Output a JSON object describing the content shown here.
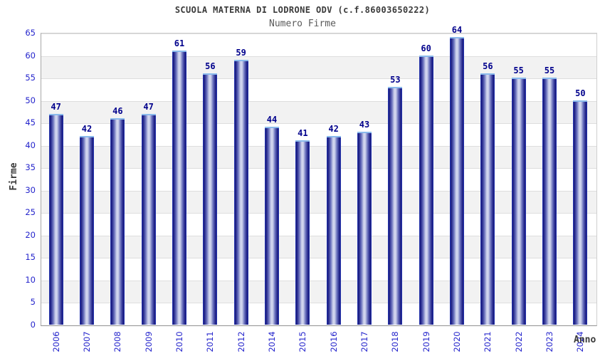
{
  "chart_data": {
    "type": "bar",
    "title": "SCUOLA MATERNA DI LODRONE ODV (c.f.86003650222)",
    "subtitle": "Numero Firme",
    "xlabel": "Anno",
    "ylabel": "Firme",
    "categories": [
      "2006",
      "2007",
      "2008",
      "2009",
      "2010",
      "2011",
      "2012",
      "2014",
      "2015",
      "2016",
      "2017",
      "2018",
      "2019",
      "2020",
      "2021",
      "2022",
      "2023",
      "2024"
    ],
    "values": [
      47,
      42,
      46,
      47,
      61,
      56,
      59,
      44,
      41,
      42,
      43,
      53,
      60,
      64,
      56,
      55,
      55,
      50
    ],
    "ylim": [
      0,
      65
    ],
    "ytick_step": 5,
    "yticks": [
      0,
      5,
      10,
      15,
      20,
      25,
      30,
      35,
      40,
      45,
      50,
      55,
      60,
      65
    ],
    "legend": "none",
    "grid": "horizontal-bands",
    "colors": {
      "bar_edge_blue": "#2d44c8",
      "bar_dark": "#16167a",
      "bar_mid_dark": "#3c41a0",
      "bar_mid": "#8087c8",
      "bar_mid_light": "#c2c7e6",
      "bar_light": "#d6daf2",
      "bar_top_cap": "#8abaec",
      "value_label": "#00008c",
      "tick_label": "#2424cc",
      "axis_text": "#3a3a3a",
      "band_white": "#ffffff",
      "band_alt": "#f2f2f2",
      "gridline": "#dedede"
    }
  }
}
